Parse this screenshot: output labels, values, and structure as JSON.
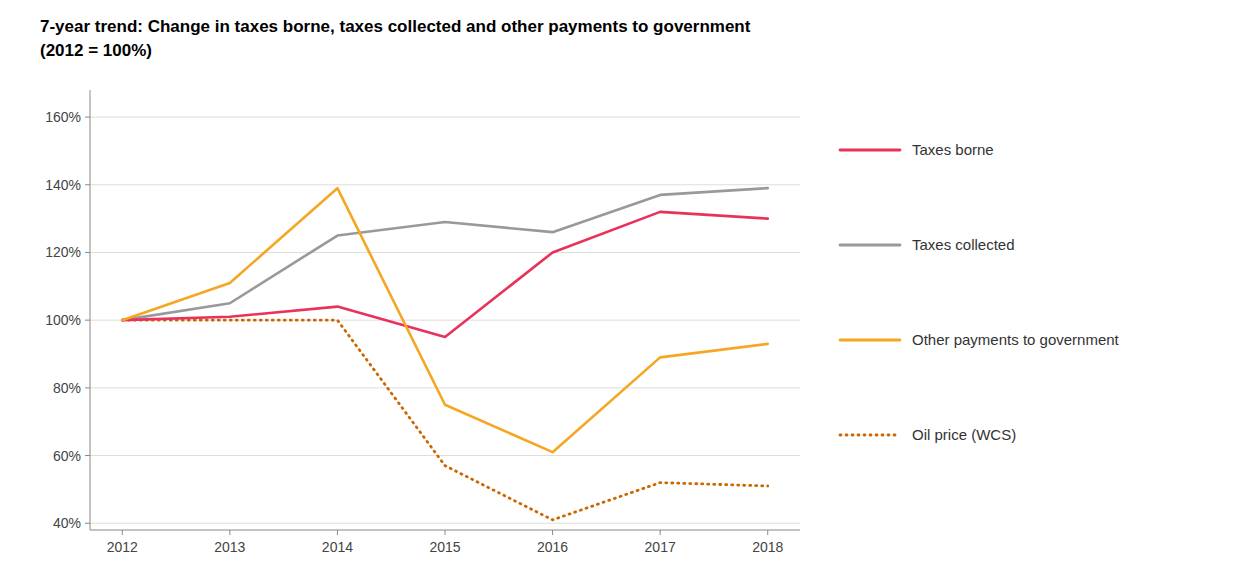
{
  "chart_data": {
    "type": "line",
    "title": "7-year trend: Change in taxes borne, taxes collected and other payments to government",
    "subtitle": "(2012 = 100%)",
    "x": [
      2012,
      2013,
      2014,
      2015,
      2016,
      2017,
      2018
    ],
    "series": [
      {
        "name": "Taxes borne",
        "color": "#e8325a",
        "line_style": "solid",
        "values": [
          100,
          101,
          104,
          95,
          120,
          132,
          130
        ]
      },
      {
        "name": "Taxes collected",
        "color": "#999999",
        "line_style": "solid",
        "values": [
          100,
          105,
          125,
          129,
          126,
          137,
          139
        ]
      },
      {
        "name": "Other payments to government",
        "color": "#f5a623",
        "line_style": "solid",
        "values": [
          100,
          111,
          139,
          75,
          61,
          89,
          93
        ]
      },
      {
        "name": "Oil price (WCS)",
        "color": "#cc6600",
        "line_style": "dotted",
        "values": [
          100,
          100,
          100,
          57,
          41,
          52,
          51
        ]
      }
    ],
    "xlim": [
      2011.7,
      2018.3
    ],
    "xticks": [
      2012,
      2013,
      2014,
      2015,
      2016,
      2017,
      2018
    ],
    "ylim": [
      38,
      168
    ],
    "yticks": [
      {
        "value": 40,
        "label": "40%"
      },
      {
        "value": 60,
        "label": "60%"
      },
      {
        "value": 80,
        "label": "80%"
      },
      {
        "value": 100,
        "label": "100%"
      },
      {
        "value": 120,
        "label": "120%"
      },
      {
        "value": 140,
        "label": "140%"
      },
      {
        "value": 160,
        "label": "160%"
      }
    ],
    "grid": true,
    "legend": "right"
  }
}
